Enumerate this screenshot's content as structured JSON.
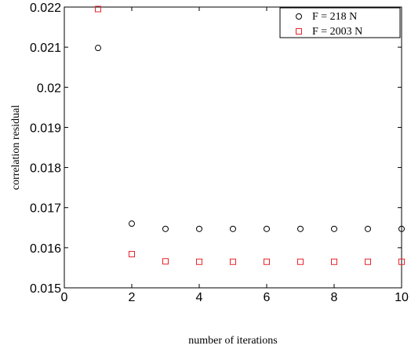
{
  "chart_data": {
    "type": "scatter",
    "xlabel": "number of iterations",
    "ylabel": "correlation residual",
    "xlim": [
      0,
      10
    ],
    "ylim": [
      0.015,
      0.022
    ],
    "xticks": [
      0,
      2,
      4,
      6,
      8,
      10
    ],
    "xtick_labels": [
      "0",
      "2",
      "4",
      "6",
      "8",
      "10"
    ],
    "yticks": [
      0.015,
      0.016,
      0.017,
      0.018,
      0.019,
      0.02,
      0.021,
      0.022
    ],
    "ytick_labels": [
      "0.015",
      "0.016",
      "0.017",
      "0.018",
      "0.019",
      "0.02",
      "0.021",
      "0.022"
    ],
    "grid": false,
    "legend_position": "top-right",
    "series": [
      {
        "name": "F = 218 N",
        "marker": "circle",
        "color": "#000000",
        "x": [
          1,
          2,
          3,
          4,
          5,
          6,
          7,
          8,
          9,
          10
        ],
        "y": [
          0.02098,
          0.0166,
          0.01647,
          0.01647,
          0.01647,
          0.01647,
          0.01647,
          0.01647,
          0.01647,
          0.01647
        ]
      },
      {
        "name": "F = 2003 N",
        "marker": "square",
        "color": "#e8232b",
        "x": [
          1,
          2,
          3,
          4,
          5,
          6,
          7,
          8,
          9,
          10
        ],
        "y": [
          0.02195,
          0.01584,
          0.01566,
          0.01565,
          0.01565,
          0.01565,
          0.01565,
          0.01565,
          0.01565,
          0.01565
        ]
      }
    ]
  }
}
